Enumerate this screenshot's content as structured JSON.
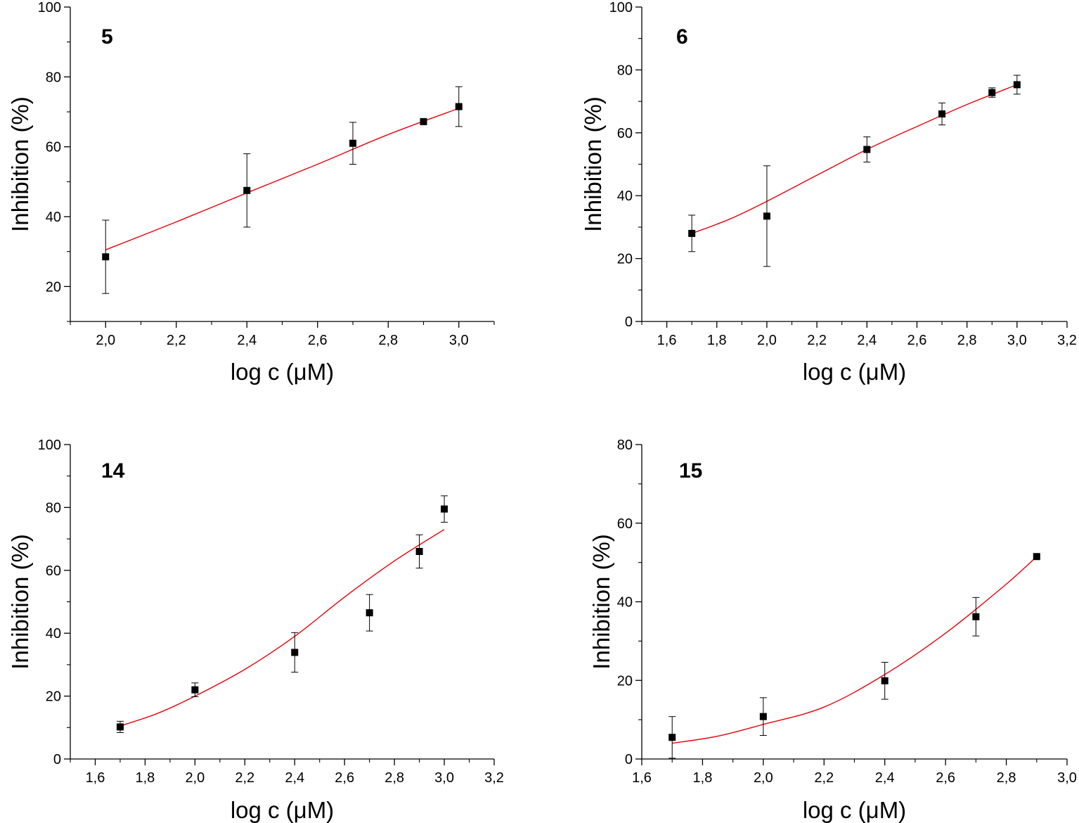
{
  "colors": {
    "axis": "#000000",
    "marker": "#000000",
    "fit_line": "#e8000b",
    "background": "#ffffff"
  },
  "chart_data": [
    {
      "type": "scatter",
      "title": "5",
      "xlabel": "log c (μM)",
      "ylabel": "Inhibition (%)",
      "xlim": [
        1.9,
        3.1
      ],
      "ylim": [
        10,
        100
      ],
      "x_ticks": [
        2.0,
        2.2,
        2.4,
        2.6,
        2.8,
        3.0
      ],
      "x_tick_labels": [
        "2,0",
        "2,2",
        "2,4",
        "2,6",
        "2,8",
        "3,0"
      ],
      "y_ticks": [
        20,
        40,
        60,
        80,
        100
      ],
      "y_tick_labels": [
        "20",
        "40",
        "60",
        "80",
        "100"
      ],
      "grid": false,
      "series": [
        {
          "x": [
            2.0,
            2.4,
            2.7,
            2.9,
            3.0
          ],
          "y": [
            28.5,
            47.5,
            61.0,
            67.2,
            71.5
          ],
          "error": [
            10.5,
            10.5,
            6.0,
            0.5,
            5.7
          ],
          "fit": {
            "x": [
              2.0,
              2.2,
              2.4,
              2.6,
              2.8,
              3.0
            ],
            "y": [
              30.5,
              38.5,
              46.8,
              55.0,
              63.5,
              71.0
            ]
          }
        }
      ]
    },
    {
      "type": "scatter",
      "title": "6",
      "xlabel": "log c (μM)",
      "ylabel": "Inhibition (%)",
      "xlim": [
        1.5,
        3.2
      ],
      "ylim": [
        0,
        100
      ],
      "x_ticks": [
        1.6,
        1.8,
        2.0,
        2.2,
        2.4,
        2.6,
        2.8,
        3.0,
        3.2
      ],
      "x_tick_labels": [
        "1,6",
        "1,8",
        "2,0",
        "2,2",
        "2,4",
        "2,6",
        "2,8",
        "3,0",
        "3,2"
      ],
      "y_ticks": [
        0,
        20,
        40,
        60,
        80,
        100
      ],
      "y_tick_labels": [
        "0",
        "20",
        "40",
        "60",
        "80",
        "100"
      ],
      "grid": false,
      "series": [
        {
          "x": [
            1.7,
            2.0,
            2.4,
            2.7,
            2.9,
            3.0
          ],
          "y": [
            28.0,
            33.5,
            54.7,
            66.0,
            72.8,
            75.3
          ],
          "error": [
            5.8,
            16.0,
            4.0,
            3.5,
            1.5,
            3.0
          ],
          "fit": {
            "x": [
              1.7,
              1.85,
              2.0,
              2.2,
              2.4,
              2.6,
              2.8,
              3.0
            ],
            "y": [
              28.0,
              32.5,
              38.2,
              46.5,
              54.7,
              62.0,
              69.0,
              75.3
            ]
          }
        }
      ]
    },
    {
      "type": "scatter",
      "title": "14",
      "xlabel": "log c (μM)",
      "ylabel": "Inhibition (%)",
      "xlim": [
        1.5,
        3.2
      ],
      "ylim": [
        0,
        100
      ],
      "x_ticks": [
        1.6,
        1.8,
        2.0,
        2.2,
        2.4,
        2.6,
        2.8,
        3.0,
        3.2
      ],
      "x_tick_labels": [
        "1,6",
        "1,8",
        "2,0",
        "2,2",
        "2,4",
        "2,6",
        "2,8",
        "3,0",
        "3,2"
      ],
      "y_ticks": [
        0,
        20,
        40,
        60,
        80,
        100
      ],
      "y_tick_labels": [
        "0",
        "20",
        "40",
        "60",
        "80",
        "100"
      ],
      "grid": false,
      "series": [
        {
          "x": [
            1.7,
            2.0,
            2.4,
            2.7,
            2.9,
            3.0
          ],
          "y": [
            10.2,
            22.0,
            33.9,
            46.5,
            66.0,
            79.5
          ],
          "error": [
            1.8,
            2.2,
            6.3,
            5.8,
            5.3,
            4.2
          ],
          "fit": {
            "x": [
              1.7,
              1.85,
              2.0,
              2.2,
              2.4,
              2.6,
              2.8,
              3.0
            ],
            "y": [
              10.5,
              14.5,
              20.0,
              28.5,
              39.0,
              51.5,
              63.0,
              73.0
            ]
          }
        }
      ]
    },
    {
      "type": "scatter",
      "title": "15",
      "xlabel": "log c (μM)",
      "ylabel": "Inhibition (%)",
      "xlim": [
        1.6,
        3.0
      ],
      "ylim": [
        0,
        80
      ],
      "x_ticks": [
        1.6,
        1.8,
        2.0,
        2.2,
        2.4,
        2.6,
        2.8,
        3.0
      ],
      "x_tick_labels": [
        "1,6",
        "1,8",
        "2,0",
        "2,2",
        "2,4",
        "2,6",
        "2,8",
        "3,0"
      ],
      "y_ticks": [
        0,
        20,
        40,
        60,
        80
      ],
      "y_tick_labels": [
        "0",
        "20",
        "40",
        "60",
        "80"
      ],
      "grid": false,
      "series": [
        {
          "x": [
            1.7,
            2.0,
            2.4,
            2.7,
            2.9
          ],
          "y": [
            5.5,
            10.8,
            19.9,
            36.2,
            51.5
          ],
          "error": [
            5.3,
            4.8,
            4.7,
            4.9,
            0.4
          ],
          "fit": {
            "x": [
              1.7,
              1.85,
              2.0,
              2.2,
              2.4,
              2.6,
              2.8,
              2.9
            ],
            "y": [
              4.0,
              5.8,
              8.8,
              13.2,
              21.5,
              32.0,
              44.5,
              51.5
            ]
          }
        }
      ]
    }
  ]
}
